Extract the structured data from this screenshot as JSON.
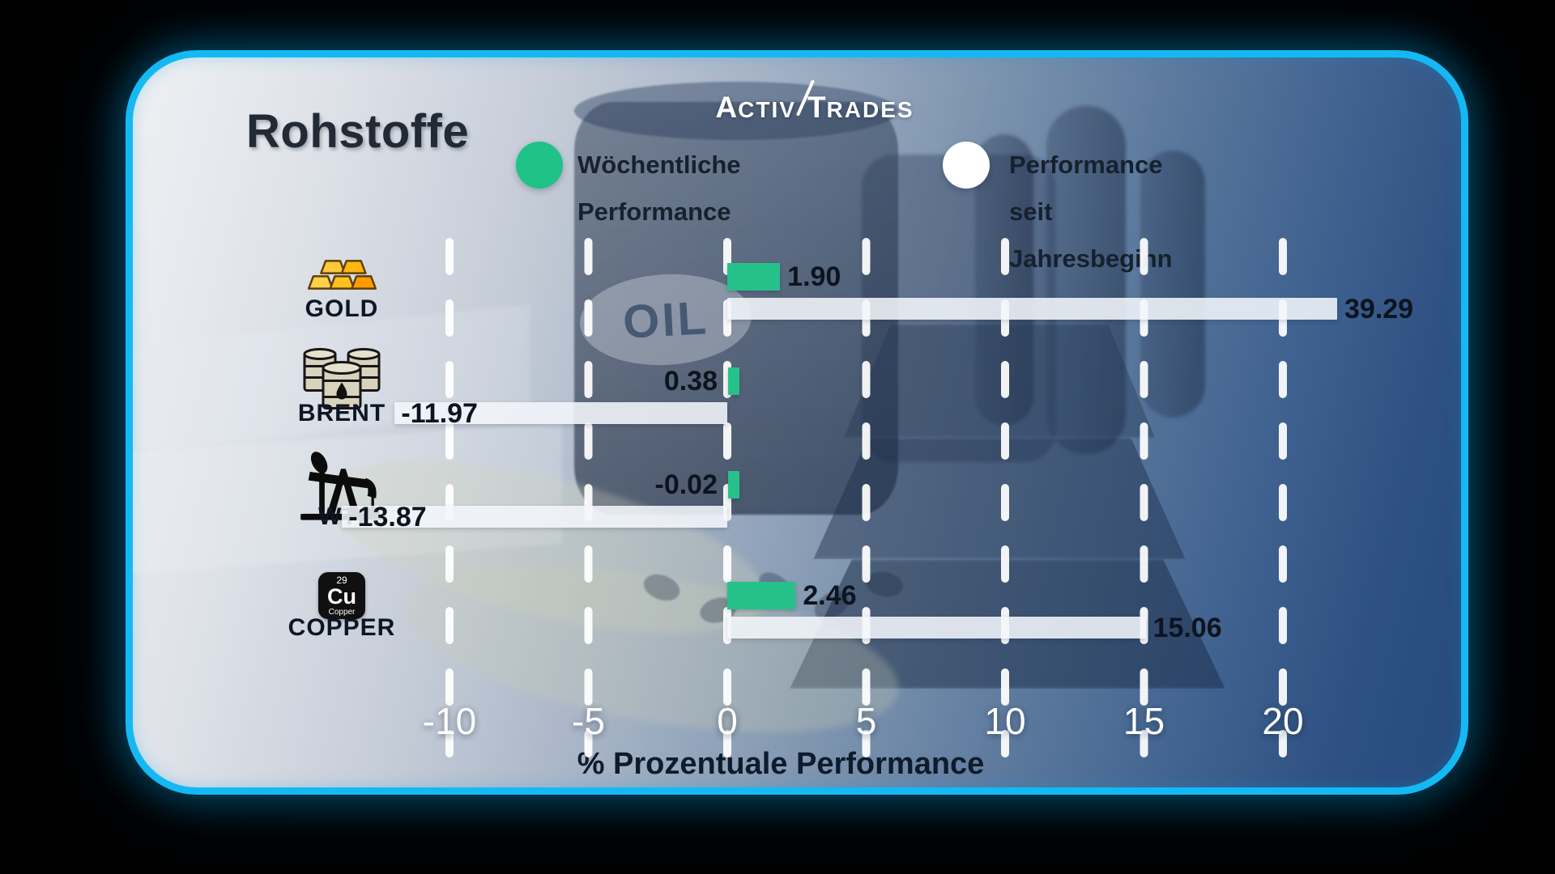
{
  "logo": {
    "part1": "ACTIV",
    "part2": "TRADES"
  },
  "title": "Rohstoffe",
  "legend": {
    "items": [
      {
        "label": "Wöchentliche Performance",
        "color": "#1fc287"
      },
      {
        "label": "Performance seit Jahresbeginn",
        "color": "#ffffff"
      }
    ]
  },
  "background": {
    "barrel_label": "OIL"
  },
  "icons": {
    "copper_element": {
      "atomic_number": "29",
      "symbol": "Cu",
      "name": "Copper"
    }
  },
  "chart_data": {
    "type": "bar",
    "orientation": "horizontal",
    "title": "Rohstoffe",
    "xlabel": "% Prozentuale Performance",
    "x_ticks": [
      -10,
      -5,
      0,
      5,
      10,
      15,
      20
    ],
    "x_tick_labels": [
      "-10",
      "-5",
      "0",
      "5",
      "10",
      "15",
      "20"
    ],
    "xlim": [
      -16,
      22
    ],
    "grid": {
      "style": "dashed",
      "orientation": "vertical",
      "color": "#ffffff"
    },
    "legend_position": "top",
    "categories": [
      "GOLD",
      "BRENT",
      "WTI",
      "COPPER"
    ],
    "category_icons": [
      "gold-bars",
      "oil-barrels",
      "oil-pump-jack",
      "copper-element"
    ],
    "series": [
      {
        "name": "Wöchentliche Performance",
        "color": "#26c18b",
        "values": [
          1.9,
          0.38,
          -0.02,
          2.46
        ],
        "value_labels": [
          "1.90",
          "0.38",
          "-0.02",
          "2.46"
        ]
      },
      {
        "name": "Performance seit Jahresbeginn",
        "color": "#f2f5f9",
        "values": [
          39.29,
          -11.97,
          -13.87,
          15.06
        ],
        "value_labels": [
          "39.29",
          "-11.97",
          "-13.87",
          "15.06"
        ]
      }
    ]
  }
}
